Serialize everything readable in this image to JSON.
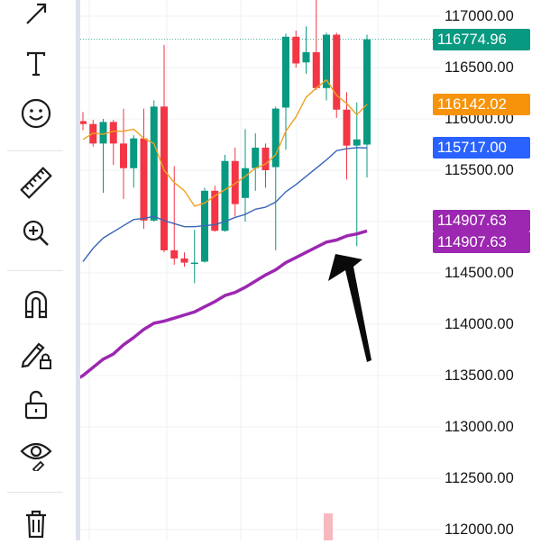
{
  "toolbar": {
    "tools": [
      {
        "name": "arrow-draw-tool",
        "icon": "arrow-icon"
      },
      {
        "name": "text-tool",
        "icon": "text-icon"
      },
      {
        "name": "emoji-tool",
        "icon": "smiley-icon"
      },
      {
        "name": "ruler-tool",
        "icon": "ruler-icon"
      },
      {
        "name": "zoom-in-tool",
        "icon": "zoom-in-icon"
      },
      {
        "name": "magnet-tool",
        "icon": "magnet-icon"
      },
      {
        "name": "lock-drawings-tool",
        "icon": "pencil-lock-icon"
      },
      {
        "name": "lock-all-tool",
        "icon": "unlock-icon"
      },
      {
        "name": "hide-drawings-tool",
        "icon": "eye-icon"
      },
      {
        "name": "remove-drawings-tool",
        "icon": "trash-icon"
      }
    ]
  },
  "price_axis": {
    "labels": [
      "117000.00",
      "116500.00",
      "116000.00",
      "115500.00",
      "115000.00",
      "114500.00",
      "114000.00",
      "113500.00",
      "113000.00",
      "112500.00",
      "112000.00"
    ]
  },
  "price_tags": [
    {
      "value": "116774.96",
      "color": "#089981"
    },
    {
      "value": "116142.02",
      "color": "#f7930a"
    },
    {
      "value": "115717.00",
      "color": "#2962ff"
    },
    {
      "value": "114907.63",
      "color": "#9c27b0"
    },
    {
      "value": "114907.63",
      "color": "#9c27b0"
    }
  ],
  "colors": {
    "up": "#089981",
    "down": "#f23645",
    "ema_fast": "#f0a020",
    "ema_mid": "#3a64b8",
    "ema_slow": "#9c27b0"
  },
  "chart_data": {
    "type": "candlestick",
    "ylim": [
      112000,
      117000
    ],
    "candles": [
      {
        "open": 115978,
        "high": 116067,
        "low": 115889,
        "close": 115950
      },
      {
        "open": 115950,
        "high": 115990,
        "low": 115730,
        "close": 115760
      },
      {
        "open": 115760,
        "high": 116000,
        "low": 115280,
        "close": 115970
      },
      {
        "open": 115970,
        "high": 115990,
        "low": 115550,
        "close": 115760
      },
      {
        "open": 115760,
        "high": 116100,
        "low": 115220,
        "close": 115520
      },
      {
        "open": 115520,
        "high": 115840,
        "low": 115330,
        "close": 115810
      },
      {
        "open": 115810,
        "high": 116100,
        "low": 114930,
        "close": 115010
      },
      {
        "open": 115010,
        "high": 116180,
        "low": 115000,
        "close": 116120
      },
      {
        "open": 116120,
        "high": 116720,
        "low": 114700,
        "close": 114720
      },
      {
        "open": 114720,
        "high": 115540,
        "low": 114580,
        "close": 114640
      },
      {
        "open": 114640,
        "high": 114700,
        "low": 114560,
        "close": 114600
      },
      {
        "open": 114600,
        "high": 114920,
        "low": 114400,
        "close": 114600
      },
      {
        "open": 114610,
        "high": 115330,
        "low": 114600,
        "close": 115300
      },
      {
        "open": 115300,
        "high": 115350,
        "low": 114900,
        "close": 114910
      },
      {
        "open": 114910,
        "high": 115650,
        "low": 114900,
        "close": 115590
      },
      {
        "open": 115590,
        "high": 115720,
        "low": 115050,
        "close": 115170
      },
      {
        "open": 115230,
        "high": 115900,
        "low": 115000,
        "close": 115520
      },
      {
        "open": 115520,
        "high": 115860,
        "low": 115300,
        "close": 115720
      },
      {
        "open": 115720,
        "high": 115760,
        "low": 115330,
        "close": 115500
      },
      {
        "open": 115530,
        "high": 116120,
        "low": 114720,
        "close": 116100
      },
      {
        "open": 116110,
        "high": 116830,
        "low": 115700,
        "close": 116800
      },
      {
        "open": 116800,
        "high": 116860,
        "low": 116500,
        "close": 116540
      },
      {
        "open": 116550,
        "high": 116900,
        "low": 116440,
        "close": 116650
      },
      {
        "open": 116650,
        "high": 117210,
        "low": 116280,
        "close": 116300
      },
      {
        "open": 116300,
        "high": 116840,
        "low": 116180,
        "close": 116820
      },
      {
        "open": 116820,
        "high": 116840,
        "low": 116010,
        "close": 116090
      },
      {
        "open": 116090,
        "high": 116260,
        "low": 115410,
        "close": 115740
      },
      {
        "open": 115740,
        "high": 116160,
        "low": 114760,
        "close": 115800
      },
      {
        "open": 115750,
        "high": 116820,
        "low": 115430,
        "close": 116775
      }
    ],
    "ema_fast": [
      115800,
      115860,
      115850,
      115880,
      115880,
      115900,
      115810,
      115760,
      115500,
      115380,
      115300,
      115150,
      115180,
      115250,
      115310,
      115370,
      115440,
      115520,
      115560,
      115650,
      115880,
      116020,
      116210,
      116300,
      116380,
      116230,
      116150,
      116040,
      116142
    ],
    "ema_mid": [
      114610,
      114740,
      114840,
      114900,
      114960,
      115020,
      115030,
      115050,
      115010,
      114980,
      114950,
      114950,
      114960,
      114970,
      115000,
      115040,
      115070,
      115120,
      115140,
      115190,
      115290,
      115360,
      115440,
      115520,
      115600,
      115690,
      115710,
      115720,
      115717
    ],
    "ema_slow": [
      113500,
      113580,
      113660,
      113710,
      113800,
      113870,
      113950,
      114010,
      114030,
      114060,
      114090,
      114120,
      114170,
      114220,
      114280,
      114310,
      114360,
      114420,
      114480,
      114530,
      114600,
      114650,
      114700,
      114750,
      114800,
      114820,
      114860,
      114880,
      114908
    ]
  }
}
